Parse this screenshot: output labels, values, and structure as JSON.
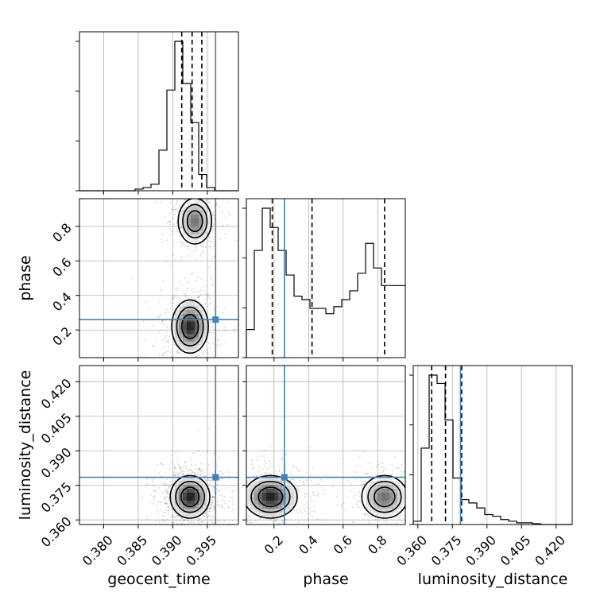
{
  "chart_data": {
    "type": "corner",
    "parameters": [
      "geocent_time",
      "phase",
      "luminosity_distance"
    ],
    "truth": {
      "geocent_time": 0.3962,
      "phase": 0.26,
      "luminosity_distance": 0.3785
    },
    "truth_color": "#4682b4",
    "grid": true,
    "axes": {
      "geocent_time": {
        "range": [
          0.3765,
          0.3995
        ],
        "ticks": [
          0.38,
          0.385,
          0.39,
          0.395
        ],
        "tick_labels": [
          "0.380",
          "0.385",
          "0.390",
          "0.395"
        ]
      },
      "phase": {
        "range": [
          0.04,
          0.96
        ],
        "ticks": [
          0.2,
          0.4,
          0.6,
          0.8
        ],
        "tick_labels": [
          "0.2",
          "0.4",
          "0.6",
          "0.8"
        ]
      },
      "luminosity_distance": {
        "range": [
          0.358,
          0.427
        ],
        "ticks": [
          0.36,
          0.375,
          0.39,
          0.405,
          0.42
        ],
        "tick_labels": [
          "0.360",
          "0.375",
          "0.390",
          "0.405",
          "0.420"
        ]
      }
    },
    "histograms": {
      "geocent_time": {
        "edges_start": 0.3765,
        "bin_width": 0.00115,
        "counts": [
          0,
          0,
          0,
          0,
          0,
          0,
          0,
          0.01,
          0.02,
          0.04,
          0.25,
          0.62,
          0.92,
          0.66,
          0.42,
          0.1,
          0.02,
          0,
          0,
          0
        ],
        "quantiles": [
          0.3913,
          0.3928,
          0.3942
        ]
      },
      "phase": {
        "edges_start": 0.04,
        "bin_width": 0.046,
        "counts": [
          0.16,
          0.61,
          0.85,
          0.74,
          0.61,
          0.47,
          0.35,
          0.33,
          0.28,
          0.28,
          0.25,
          0.29,
          0.33,
          0.38,
          0.48,
          0.65,
          0.51,
          0.41,
          0.41,
          0.41
        ],
        "quantiles": [
          0.19,
          0.42,
          0.84
        ]
      },
      "luminosity_distance": {
        "edges_start": 0.358,
        "bin_width": 0.00345,
        "counts": [
          0.02,
          0.46,
          0.9,
          0.85,
          0.63,
          0.28,
          0.15,
          0.13,
          0.1,
          0.06,
          0.05,
          0.03,
          0.02,
          0.01,
          0.01,
          0.005,
          0,
          0,
          0,
          0
        ],
        "quantiles": [
          0.366,
          0.372,
          0.379
        ]
      }
    },
    "posterior_modes": {
      "geocent_time_vs_phase": [
        {
          "x": 0.3925,
          "y": 0.22,
          "sx": 0.0012,
          "sy": 0.07,
          "w": 0.6
        },
        {
          "x": 0.3932,
          "y": 0.83,
          "sx": 0.0011,
          "sy": 0.06,
          "w": 0.4
        }
      ],
      "geocent_time_vs_luminosity_distance": [
        {
          "x": 0.3925,
          "y": 0.37,
          "sx": 0.0013,
          "sy": 0.0042,
          "w": 1.0
        }
      ],
      "phase_vs_luminosity_distance": [
        {
          "x": 0.18,
          "y": 0.37,
          "sx": 0.07,
          "sy": 0.0042,
          "w": 0.6
        },
        {
          "x": 0.84,
          "y": 0.37,
          "sx": 0.06,
          "sy": 0.0042,
          "w": 0.4
        }
      ]
    }
  }
}
